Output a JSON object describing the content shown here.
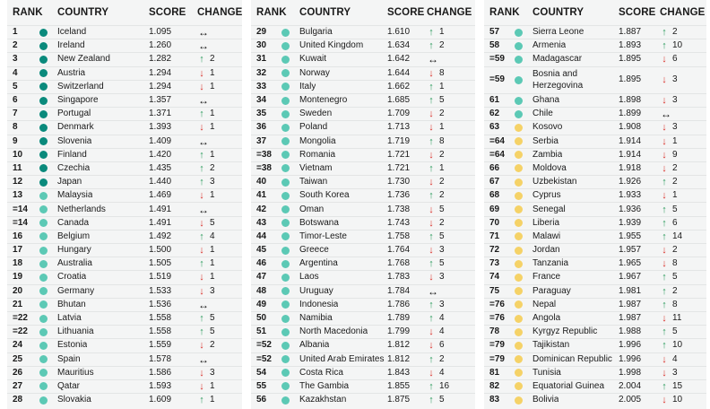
{
  "headers": {
    "rank": "RANK",
    "country": "COUNTRY",
    "score": "SCORE",
    "change": "CHANGE"
  },
  "colors": {
    "dark_teal": "#0a8a7c",
    "light_teal": "#5cc9b5",
    "yellow": "#f5d267",
    "up": "#2e9c5e",
    "down": "#d9312b"
  },
  "columns": [
    {
      "rows": [
        {
          "rank": "1",
          "country": "Iceland",
          "score": "1.095",
          "dir": "same",
          "change": "",
          "tier": "dark_teal"
        },
        {
          "rank": "2",
          "country": "Ireland",
          "score": "1.260",
          "dir": "same",
          "change": "",
          "tier": "dark_teal"
        },
        {
          "rank": "3",
          "country": "New Zealand",
          "score": "1.282",
          "dir": "up",
          "change": "2",
          "tier": "dark_teal"
        },
        {
          "rank": "4",
          "country": "Austria",
          "score": "1.294",
          "dir": "down",
          "change": "1",
          "tier": "dark_teal"
        },
        {
          "rank": "5",
          "country": "Switzerland",
          "score": "1.294",
          "dir": "down",
          "change": "1",
          "tier": "dark_teal"
        },
        {
          "rank": "6",
          "country": "Singapore",
          "score": "1.357",
          "dir": "same",
          "change": "",
          "tier": "dark_teal"
        },
        {
          "rank": "7",
          "country": "Portugal",
          "score": "1.371",
          "dir": "up",
          "change": "1",
          "tier": "dark_teal"
        },
        {
          "rank": "8",
          "country": "Denmark",
          "score": "1.393",
          "dir": "down",
          "change": "1",
          "tier": "dark_teal"
        },
        {
          "rank": "9",
          "country": "Slovenia",
          "score": "1.409",
          "dir": "same",
          "change": "",
          "tier": "dark_teal"
        },
        {
          "rank": "10",
          "country": "Finland",
          "score": "1.420",
          "dir": "up",
          "change": "1",
          "tier": "dark_teal"
        },
        {
          "rank": "11",
          "country": "Czechia",
          "score": "1.435",
          "dir": "up",
          "change": "2",
          "tier": "dark_teal"
        },
        {
          "rank": "12",
          "country": "Japan",
          "score": "1.440",
          "dir": "up",
          "change": "3",
          "tier": "dark_teal"
        },
        {
          "rank": "13",
          "country": "Malaysia",
          "score": "1.469",
          "dir": "down",
          "change": "1",
          "tier": "light_teal"
        },
        {
          "rank": "=14",
          "country": "Netherlands",
          "score": "1.491",
          "dir": "same",
          "change": "",
          "tier": "light_teal"
        },
        {
          "rank": "=14",
          "country": "Canada",
          "score": "1.491",
          "dir": "down",
          "change": "5",
          "tier": "light_teal"
        },
        {
          "rank": "16",
          "country": "Belgium",
          "score": "1.492",
          "dir": "up",
          "change": "4",
          "tier": "light_teal"
        },
        {
          "rank": "17",
          "country": "Hungary",
          "score": "1.500",
          "dir": "down",
          "change": "1",
          "tier": "light_teal"
        },
        {
          "rank": "18",
          "country": "Australia",
          "score": "1.505",
          "dir": "up",
          "change": "1",
          "tier": "light_teal"
        },
        {
          "rank": "19",
          "country": "Croatia",
          "score": "1.519",
          "dir": "down",
          "change": "1",
          "tier": "light_teal"
        },
        {
          "rank": "20",
          "country": "Germany",
          "score": "1.533",
          "dir": "down",
          "change": "3",
          "tier": "light_teal"
        },
        {
          "rank": "21",
          "country": "Bhutan",
          "score": "1.536",
          "dir": "same",
          "change": "",
          "tier": "light_teal"
        },
        {
          "rank": "=22",
          "country": "Latvia",
          "score": "1.558",
          "dir": "up",
          "change": "5",
          "tier": "light_teal"
        },
        {
          "rank": "=22",
          "country": "Lithuania",
          "score": "1.558",
          "dir": "up",
          "change": "5",
          "tier": "light_teal"
        },
        {
          "rank": "24",
          "country": "Estonia",
          "score": "1.559",
          "dir": "down",
          "change": "2",
          "tier": "light_teal"
        },
        {
          "rank": "25",
          "country": "Spain",
          "score": "1.578",
          "dir": "same",
          "change": "",
          "tier": "light_teal"
        },
        {
          "rank": "26",
          "country": "Mauritius",
          "score": "1.586",
          "dir": "down",
          "change": "3",
          "tier": "light_teal"
        },
        {
          "rank": "27",
          "country": "Qatar",
          "score": "1.593",
          "dir": "down",
          "change": "1",
          "tier": "light_teal"
        },
        {
          "rank": "28",
          "country": "Slovakia",
          "score": "1.609",
          "dir": "up",
          "change": "1",
          "tier": "light_teal"
        }
      ]
    },
    {
      "rows": [
        {
          "rank": "29",
          "country": "Bulgaria",
          "score": "1.610",
          "dir": "up",
          "change": "1",
          "tier": "light_teal"
        },
        {
          "rank": "30",
          "country": "United Kingdom",
          "score": "1.634",
          "dir": "up",
          "change": "2",
          "tier": "light_teal"
        },
        {
          "rank": "31",
          "country": "Kuwait",
          "score": "1.642",
          "dir": "same",
          "change": "",
          "tier": "light_teal"
        },
        {
          "rank": "32",
          "country": "Norway",
          "score": "1.644",
          "dir": "down",
          "change": "8",
          "tier": "light_teal"
        },
        {
          "rank": "33",
          "country": "Italy",
          "score": "1.662",
          "dir": "up",
          "change": "1",
          "tier": "light_teal"
        },
        {
          "rank": "34",
          "country": "Montenegro",
          "score": "1.685",
          "dir": "up",
          "change": "5",
          "tier": "light_teal"
        },
        {
          "rank": "35",
          "country": "Sweden",
          "score": "1.709",
          "dir": "down",
          "change": "2",
          "tier": "light_teal"
        },
        {
          "rank": "36",
          "country": "Poland",
          "score": "1.713",
          "dir": "down",
          "change": "1",
          "tier": "light_teal"
        },
        {
          "rank": "37",
          "country": "Mongolia",
          "score": "1.719",
          "dir": "up",
          "change": "8",
          "tier": "light_teal"
        },
        {
          "rank": "=38",
          "country": "Romania",
          "score": "1.721",
          "dir": "down",
          "change": "2",
          "tier": "light_teal"
        },
        {
          "rank": "=38",
          "country": "Vietnam",
          "score": "1.721",
          "dir": "up",
          "change": "1",
          "tier": "light_teal"
        },
        {
          "rank": "40",
          "country": "Taiwan",
          "score": "1.730",
          "dir": "down",
          "change": "2",
          "tier": "light_teal"
        },
        {
          "rank": "41",
          "country": "South Korea",
          "score": "1.736",
          "dir": "up",
          "change": "2",
          "tier": "light_teal"
        },
        {
          "rank": "42",
          "country": "Oman",
          "score": "1.738",
          "dir": "down",
          "change": "5",
          "tier": "light_teal"
        },
        {
          "rank": "43",
          "country": "Botswana",
          "score": "1.743",
          "dir": "down",
          "change": "2",
          "tier": "light_teal"
        },
        {
          "rank": "44",
          "country": "Timor-Leste",
          "score": "1.758",
          "dir": "up",
          "change": "5",
          "tier": "light_teal"
        },
        {
          "rank": "45",
          "country": "Greece",
          "score": "1.764",
          "dir": "down",
          "change": "3",
          "tier": "light_teal"
        },
        {
          "rank": "46",
          "country": "Argentina",
          "score": "1.768",
          "dir": "up",
          "change": "5",
          "tier": "light_teal"
        },
        {
          "rank": "47",
          "country": "Laos",
          "score": "1.783",
          "dir": "down",
          "change": "3",
          "tier": "light_teal"
        },
        {
          "rank": "48",
          "country": "Uruguay",
          "score": "1.784",
          "dir": "same",
          "change": "",
          "tier": "light_teal"
        },
        {
          "rank": "49",
          "country": "Indonesia",
          "score": "1.786",
          "dir": "up",
          "change": "3",
          "tier": "light_teal"
        },
        {
          "rank": "50",
          "country": "Namibia",
          "score": "1.789",
          "dir": "up",
          "change": "4",
          "tier": "light_teal"
        },
        {
          "rank": "51",
          "country": "North Macedonia",
          "score": "1.799",
          "dir": "down",
          "change": "4",
          "tier": "light_teal"
        },
        {
          "rank": "=52",
          "country": "Albania",
          "score": "1.812",
          "dir": "down",
          "change": "6",
          "tier": "light_teal"
        },
        {
          "rank": "=52",
          "country": "United Arab Emirates",
          "score": "1.812",
          "dir": "up",
          "change": "2",
          "tier": "light_teal"
        },
        {
          "rank": "54",
          "country": "Costa Rica",
          "score": "1.843",
          "dir": "down",
          "change": "4",
          "tier": "light_teal"
        },
        {
          "rank": "55",
          "country": "The Gambia",
          "score": "1.855",
          "dir": "up",
          "change": "16",
          "tier": "light_teal"
        },
        {
          "rank": "56",
          "country": "Kazakhstan",
          "score": "1.875",
          "dir": "up",
          "change": "5",
          "tier": "light_teal"
        }
      ]
    },
    {
      "rows": [
        {
          "rank": "57",
          "country": "Sierra Leone",
          "score": "1.887",
          "dir": "up",
          "change": "2",
          "tier": "light_teal"
        },
        {
          "rank": "58",
          "country": "Armenia",
          "score": "1.893",
          "dir": "up",
          "change": "10",
          "tier": "light_teal"
        },
        {
          "rank": "=59",
          "country": "Madagascar",
          "score": "1.895",
          "dir": "down",
          "change": "6",
          "tier": "light_teal"
        },
        {
          "rank": "=59",
          "country": "Bosnia and Herzegovina",
          "score": "1.895",
          "dir": "down",
          "change": "3",
          "tier": "light_teal",
          "tall": true
        },
        {
          "rank": "61",
          "country": "Ghana",
          "score": "1.898",
          "dir": "down",
          "change": "3",
          "tier": "light_teal"
        },
        {
          "rank": "62",
          "country": "Chile",
          "score": "1.899",
          "dir": "same",
          "change": "",
          "tier": "light_teal"
        },
        {
          "rank": "63",
          "country": "Kosovo",
          "score": "1.908",
          "dir": "down",
          "change": "3",
          "tier": "yellow"
        },
        {
          "rank": "=64",
          "country": "Serbia",
          "score": "1.914",
          "dir": "down",
          "change": "1",
          "tier": "yellow"
        },
        {
          "rank": "=64",
          "country": "Zambia",
          "score": "1.914",
          "dir": "down",
          "change": "9",
          "tier": "yellow"
        },
        {
          "rank": "66",
          "country": "Moldova",
          "score": "1.918",
          "dir": "down",
          "change": "2",
          "tier": "yellow"
        },
        {
          "rank": "67",
          "country": "Uzbekistan",
          "score": "1.926",
          "dir": "up",
          "change": "2",
          "tier": "yellow"
        },
        {
          "rank": "68",
          "country": "Cyprus",
          "score": "1.933",
          "dir": "down",
          "change": "1",
          "tier": "yellow"
        },
        {
          "rank": "69",
          "country": "Senegal",
          "score": "1.936",
          "dir": "up",
          "change": "5",
          "tier": "yellow"
        },
        {
          "rank": "70",
          "country": "Liberia",
          "score": "1.939",
          "dir": "up",
          "change": "6",
          "tier": "yellow"
        },
        {
          "rank": "71",
          "country": "Malawi",
          "score": "1.955",
          "dir": "up",
          "change": "14",
          "tier": "yellow"
        },
        {
          "rank": "72",
          "country": "Jordan",
          "score": "1.957",
          "dir": "down",
          "change": "2",
          "tier": "yellow"
        },
        {
          "rank": "73",
          "country": "Tanzania",
          "score": "1.965",
          "dir": "down",
          "change": "8",
          "tier": "yellow"
        },
        {
          "rank": "74",
          "country": "France",
          "score": "1.967",
          "dir": "up",
          "change": "5",
          "tier": "yellow"
        },
        {
          "rank": "75",
          "country": "Paraguay",
          "score": "1.981",
          "dir": "up",
          "change": "2",
          "tier": "yellow"
        },
        {
          "rank": "=76",
          "country": "Nepal",
          "score": "1.987",
          "dir": "up",
          "change": "8",
          "tier": "yellow"
        },
        {
          "rank": "=76",
          "country": "Angola",
          "score": "1.987",
          "dir": "down",
          "change": "11",
          "tier": "yellow"
        },
        {
          "rank": "78",
          "country": "Kyrgyz Republic",
          "score": "1.988",
          "dir": "up",
          "change": "5",
          "tier": "yellow"
        },
        {
          "rank": "=79",
          "country": "Tajikistan",
          "score": "1.996",
          "dir": "up",
          "change": "10",
          "tier": "yellow"
        },
        {
          "rank": "=79",
          "country": "Dominican Republic",
          "score": "1.996",
          "dir": "down",
          "change": "4",
          "tier": "yellow"
        },
        {
          "rank": "81",
          "country": "Tunisia",
          "score": "1.998",
          "dir": "down",
          "change": "3",
          "tier": "yellow"
        },
        {
          "rank": "82",
          "country": "Equatorial Guinea",
          "score": "2.004",
          "dir": "up",
          "change": "15",
          "tier": "yellow"
        },
        {
          "rank": "83",
          "country": "Bolivia",
          "score": "2.005",
          "dir": "down",
          "change": "10",
          "tier": "yellow"
        }
      ]
    }
  ]
}
